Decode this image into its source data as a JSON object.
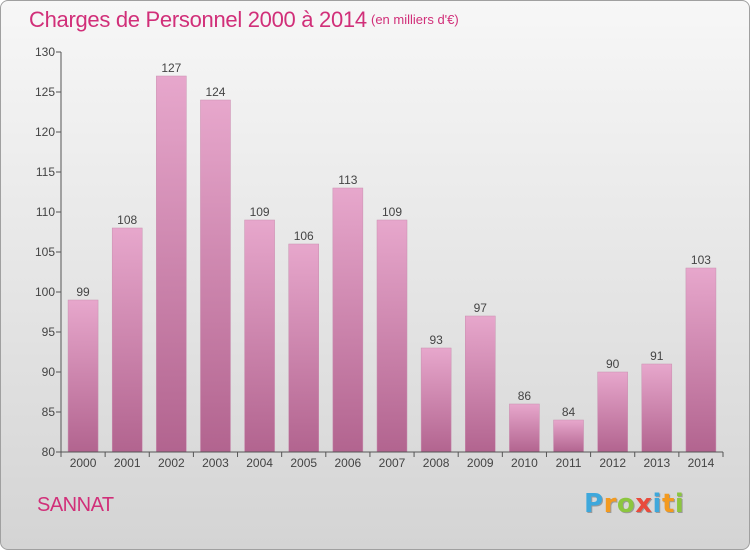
{
  "chart_data": {
    "type": "bar",
    "title": "Charges de Personnel 2000 à 2014",
    "subtitle": "(en milliers d'€)",
    "categories": [
      "2000",
      "2001",
      "2002",
      "2003",
      "2004",
      "2005",
      "2006",
      "2007",
      "2008",
      "2009",
      "2010",
      "2011",
      "2012",
      "2013",
      "2014"
    ],
    "values": [
      99,
      108,
      127,
      124,
      109,
      106,
      113,
      109,
      93,
      97,
      86,
      84,
      90,
      91,
      103
    ],
    "ylim": [
      80,
      130
    ],
    "yticks": [
      80,
      85,
      90,
      95,
      100,
      105,
      110,
      115,
      120,
      125,
      130
    ],
    "xlabel": "",
    "ylabel": "",
    "grid": false,
    "bar_color_top": "#e7a7cc",
    "bar_color_bottom": "#b2648f"
  },
  "commune": "SANNAT",
  "logo": {
    "letters": [
      {
        "ch": "P",
        "color": "#3ea8dc"
      },
      {
        "ch": "r",
        "color": "#f39a1f"
      },
      {
        "ch": "o",
        "color": "#8cc63f"
      },
      {
        "ch": "x",
        "color": "#e94b3c"
      },
      {
        "ch": "i",
        "color": "#3ea8dc"
      },
      {
        "ch": "t",
        "color": "#f39a1f"
      },
      {
        "ch": "i",
        "color": "#8cc63f"
      }
    ]
  },
  "colors": {
    "accent": "#d12f79",
    "axis": "#555555"
  }
}
